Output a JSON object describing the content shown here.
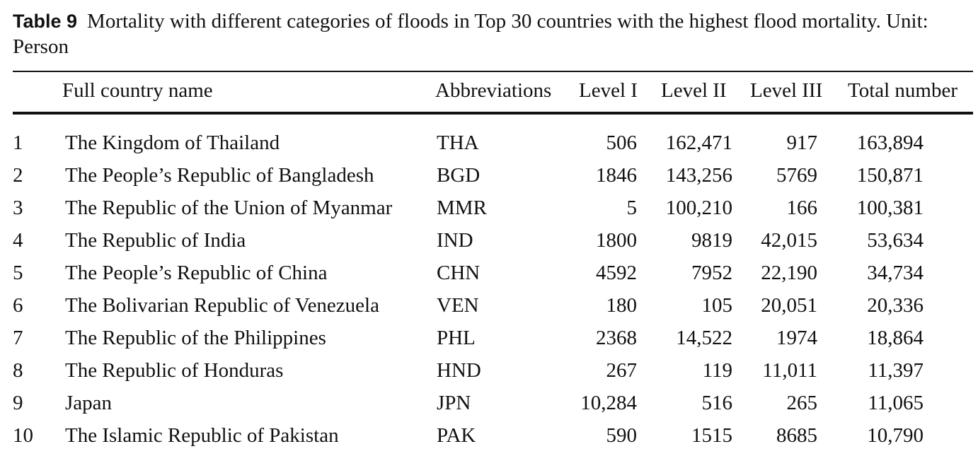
{
  "caption": {
    "label": "Table 9",
    "text": "Mortality with different categories of floods in Top 30 countries with the highest flood mortality. Unit: Person"
  },
  "headers": {
    "name": "Full country name",
    "abbr": "Abbreviations",
    "level1": "Level I",
    "level2": "Level II",
    "level3": "Level III",
    "total": "Total number"
  },
  "rows": [
    {
      "idx": "1",
      "name": "The Kingdom of Thailand",
      "abbr": "THA",
      "l1": "506",
      "l2": "162,471",
      "l3": "917",
      "total": "163,894"
    },
    {
      "idx": "2",
      "name": "The People’s Republic of Bangladesh",
      "abbr": "BGD",
      "l1": "1846",
      "l2": "143,256",
      "l3": "5769",
      "total": "150,871"
    },
    {
      "idx": "3",
      "name": "The Republic of the Union of Myanmar",
      "abbr": "MMR",
      "l1": "5",
      "l2": "100,210",
      "l3": "166",
      "total": "100,381"
    },
    {
      "idx": "4",
      "name": "The Republic of India",
      "abbr": "IND",
      "l1": "1800",
      "l2": "9819",
      "l3": "42,015",
      "total": "53,634"
    },
    {
      "idx": "5",
      "name": "The People’s Republic of China",
      "abbr": "CHN",
      "l1": "4592",
      "l2": "7952",
      "l3": "22,190",
      "total": "34,734"
    },
    {
      "idx": "6",
      "name": "The Bolivarian Republic of Venezuela",
      "abbr": "VEN",
      "l1": "180",
      "l2": "105",
      "l3": "20,051",
      "total": "20,336"
    },
    {
      "idx": "7",
      "name": "The Republic of the Philippines",
      "abbr": "PHL",
      "l1": "2368",
      "l2": "14,522",
      "l3": "1974",
      "total": "18,864"
    },
    {
      "idx": "8",
      "name": "The Republic of Honduras",
      "abbr": "HND",
      "l1": "267",
      "l2": "119",
      "l3": "11,011",
      "total": "11,397"
    },
    {
      "idx": "9",
      "name": "Japan",
      "abbr": "JPN",
      "l1": "10,284",
      "l2": "516",
      "l3": "265",
      "total": "11,065"
    },
    {
      "idx": "10",
      "name": "The Islamic Republic of Pakistan",
      "abbr": "PAK",
      "l1": "590",
      "l2": "1515",
      "l3": "8685",
      "total": "10,790"
    }
  ]
}
